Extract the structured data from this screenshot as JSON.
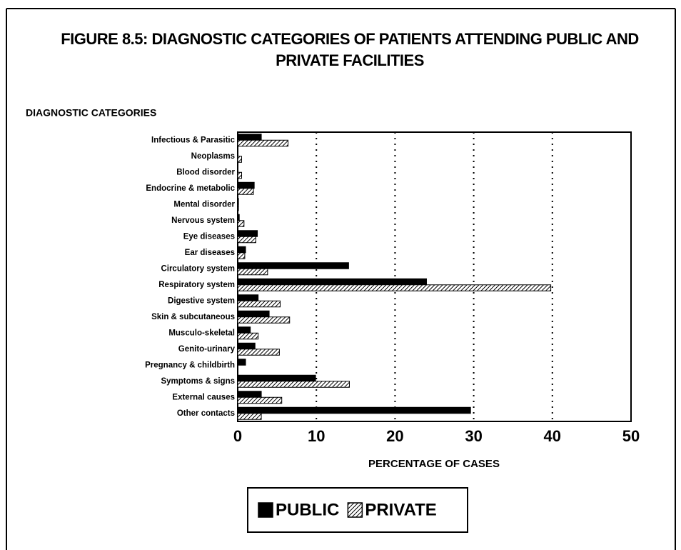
{
  "chart_data": {
    "type": "barh",
    "title": "FIGURE 8.5: DIAGNOSTIC CATEGORIES OF PATIENTS ATTENDING PUBLIC AND PRIVATE FACILITIES",
    "y_label": "DIAGNOSTIC CATEGORIES",
    "x_label": "PERCENTAGE OF CASES",
    "categories": [
      "Infectious & Parasitic",
      "Neoplasms",
      "Blood disorder",
      "Endocrine & metabolic",
      "Mental disorder",
      "Nervous system",
      "Eye diseases",
      "Ear diseases",
      "Circulatory system",
      "Respiratory system",
      "Digestive system",
      "Skin & subcutaneous",
      "Musculo-skeletal",
      "Genito-urinary",
      "Pregnancy & childbirth",
      "Symptoms & signs",
      "External causes",
      "Other contacts"
    ],
    "series": [
      {
        "name": "PUBLIC",
        "color": "#000000",
        "hatch": false,
        "values": [
          3.0,
          0,
          0,
          2.1,
          0.1,
          0.2,
          2.5,
          1.0,
          14.1,
          24.0,
          2.6,
          4.0,
          1.6,
          2.2,
          1.0,
          9.9,
          3.0,
          29.6
        ]
      },
      {
        "name": "PRIVATE",
        "color": "#000000",
        "hatch": true,
        "values": [
          6.4,
          0.5,
          0.5,
          2.0,
          0.1,
          0.8,
          2.3,
          0.9,
          3.8,
          39.8,
          5.4,
          6.6,
          2.6,
          5.3,
          0,
          14.2,
          5.6,
          3.0
        ]
      }
    ],
    "xlim": [
      0,
      50
    ],
    "xticks": [
      0,
      10,
      20,
      30,
      40,
      50
    ],
    "grid": true,
    "legend": "bottom"
  }
}
